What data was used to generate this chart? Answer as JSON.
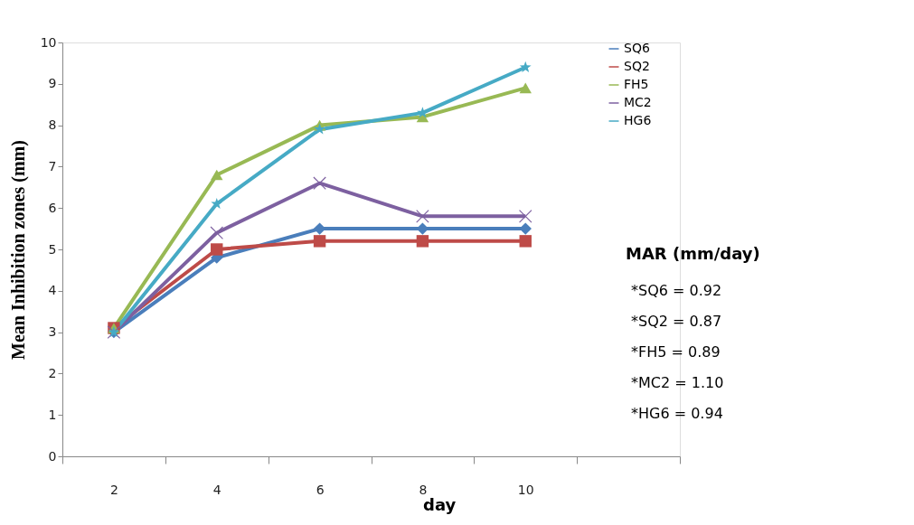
{
  "chart_data": {
    "type": "line",
    "xlabel": "day",
    "ylabel": "Mean Inhibition zones (mm)",
    "categories": [
      "2",
      "4",
      "6",
      "8",
      "10",
      null
    ],
    "series": [
      {
        "name": "SQ6",
        "color": "#4a7ebb",
        "marker": "diamond",
        "values": [
          3.0,
          4.8,
          5.5,
          5.5,
          5.5,
          null
        ]
      },
      {
        "name": "SQ2",
        "color": "#be4b48",
        "marker": "square",
        "values": [
          3.1,
          5.0,
          5.2,
          5.2,
          5.2,
          null
        ]
      },
      {
        "name": "FH5",
        "color": "#98b954",
        "marker": "triangle",
        "values": [
          3.1,
          6.8,
          8.0,
          8.2,
          8.9,
          null
        ]
      },
      {
        "name": "MC2",
        "color": "#7d60a0",
        "marker": "cross",
        "values": [
          3.0,
          5.4,
          6.6,
          5.8,
          5.8,
          null
        ]
      },
      {
        "name": "HG6",
        "color": "#46aac5",
        "marker": "star",
        "values": [
          3.0,
          6.1,
          7.9,
          8.3,
          9.4,
          null
        ]
      }
    ],
    "ylim": [
      0,
      10
    ],
    "yticks": [
      0,
      1,
      2,
      3,
      4,
      5,
      6,
      7,
      8,
      9,
      10
    ],
    "grid": false,
    "legend": "top right",
    "line_style": "solid",
    "annotations": [
      "MAR (mm/day)",
      "*SQ6  = 0.92",
      "*SQ2  = 0.87",
      "*FH5  = 0.89",
      "*MC2 = 1.10",
      "*HG6  = 0.94"
    ]
  }
}
